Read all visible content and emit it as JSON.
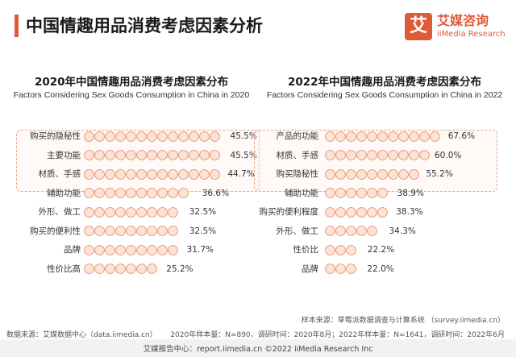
{
  "page": {
    "title": "中国情趣用品消费考虑因素分析",
    "logo_mark": "艾",
    "logo_cn": "艾媒咨询",
    "logo_en": "iiMedia Research"
  },
  "colors": {
    "accent": "#e05a3a",
    "bead_fill": "#fbe3d6",
    "bead_stroke": "#e8906e",
    "highlight_border": "#e8a48c"
  },
  "chart_data": [
    {
      "type": "bar",
      "orientation": "horizontal",
      "title": "2020年中国情趣用品消费考虑因素分布",
      "subtitle": "Factors Considering Sex Goods Consumption in China in 2020",
      "categories": [
        "购买的隐秘性",
        "主要功能",
        "材质、手感",
        "辅助功能",
        "外形、做工",
        "购买的便利性",
        "品牌",
        "性价比高"
      ],
      "values": [
        45.5,
        45.5,
        44.7,
        36.6,
        32.5,
        32.5,
        31.7,
        25.2
      ],
      "value_labels": [
        "45.5%",
        "45.5%",
        "44.7%",
        "36.6%",
        "32.5%",
        "32.5%",
        "31.7%",
        "25.2%"
      ],
      "highlighted_top": 3
    },
    {
      "type": "bar",
      "orientation": "horizontal",
      "title": "2022年中国情趣用品消费考虑因素分布",
      "subtitle": "Factors Considering Sex Goods Consumption in China in 2022",
      "categories": [
        "产品的功能",
        "材质、手感",
        "购买隐秘性",
        "辅助功能",
        "购买的便利程度",
        "外形、做工",
        "性价比",
        "品牌"
      ],
      "values": [
        67.6,
        60.0,
        55.2,
        38.9,
        38.3,
        34.3,
        22.2,
        22.0
      ],
      "value_labels": [
        "67.6%",
        "60.0%",
        "55.2%",
        "38.9%",
        "38.3%",
        "34.3%",
        "22.2%",
        "22.0%"
      ],
      "highlighted_top": 3
    }
  ],
  "footer": {
    "sample_source": "样本来源：草莓派数据调查与计算系统 （survey.iimedia.cn）",
    "data_source": "数据来源：艾媒数据中心（data.iimedia.cn）",
    "sample_info": "2020年样本量：N=890，调研时间：2020年8月；2022年样本量：N=1641，调研时间：2022年6月",
    "bottom_text": "艾媒报告中心：report.iimedia.cn  ©2022  iiMedia Research  Inc"
  }
}
